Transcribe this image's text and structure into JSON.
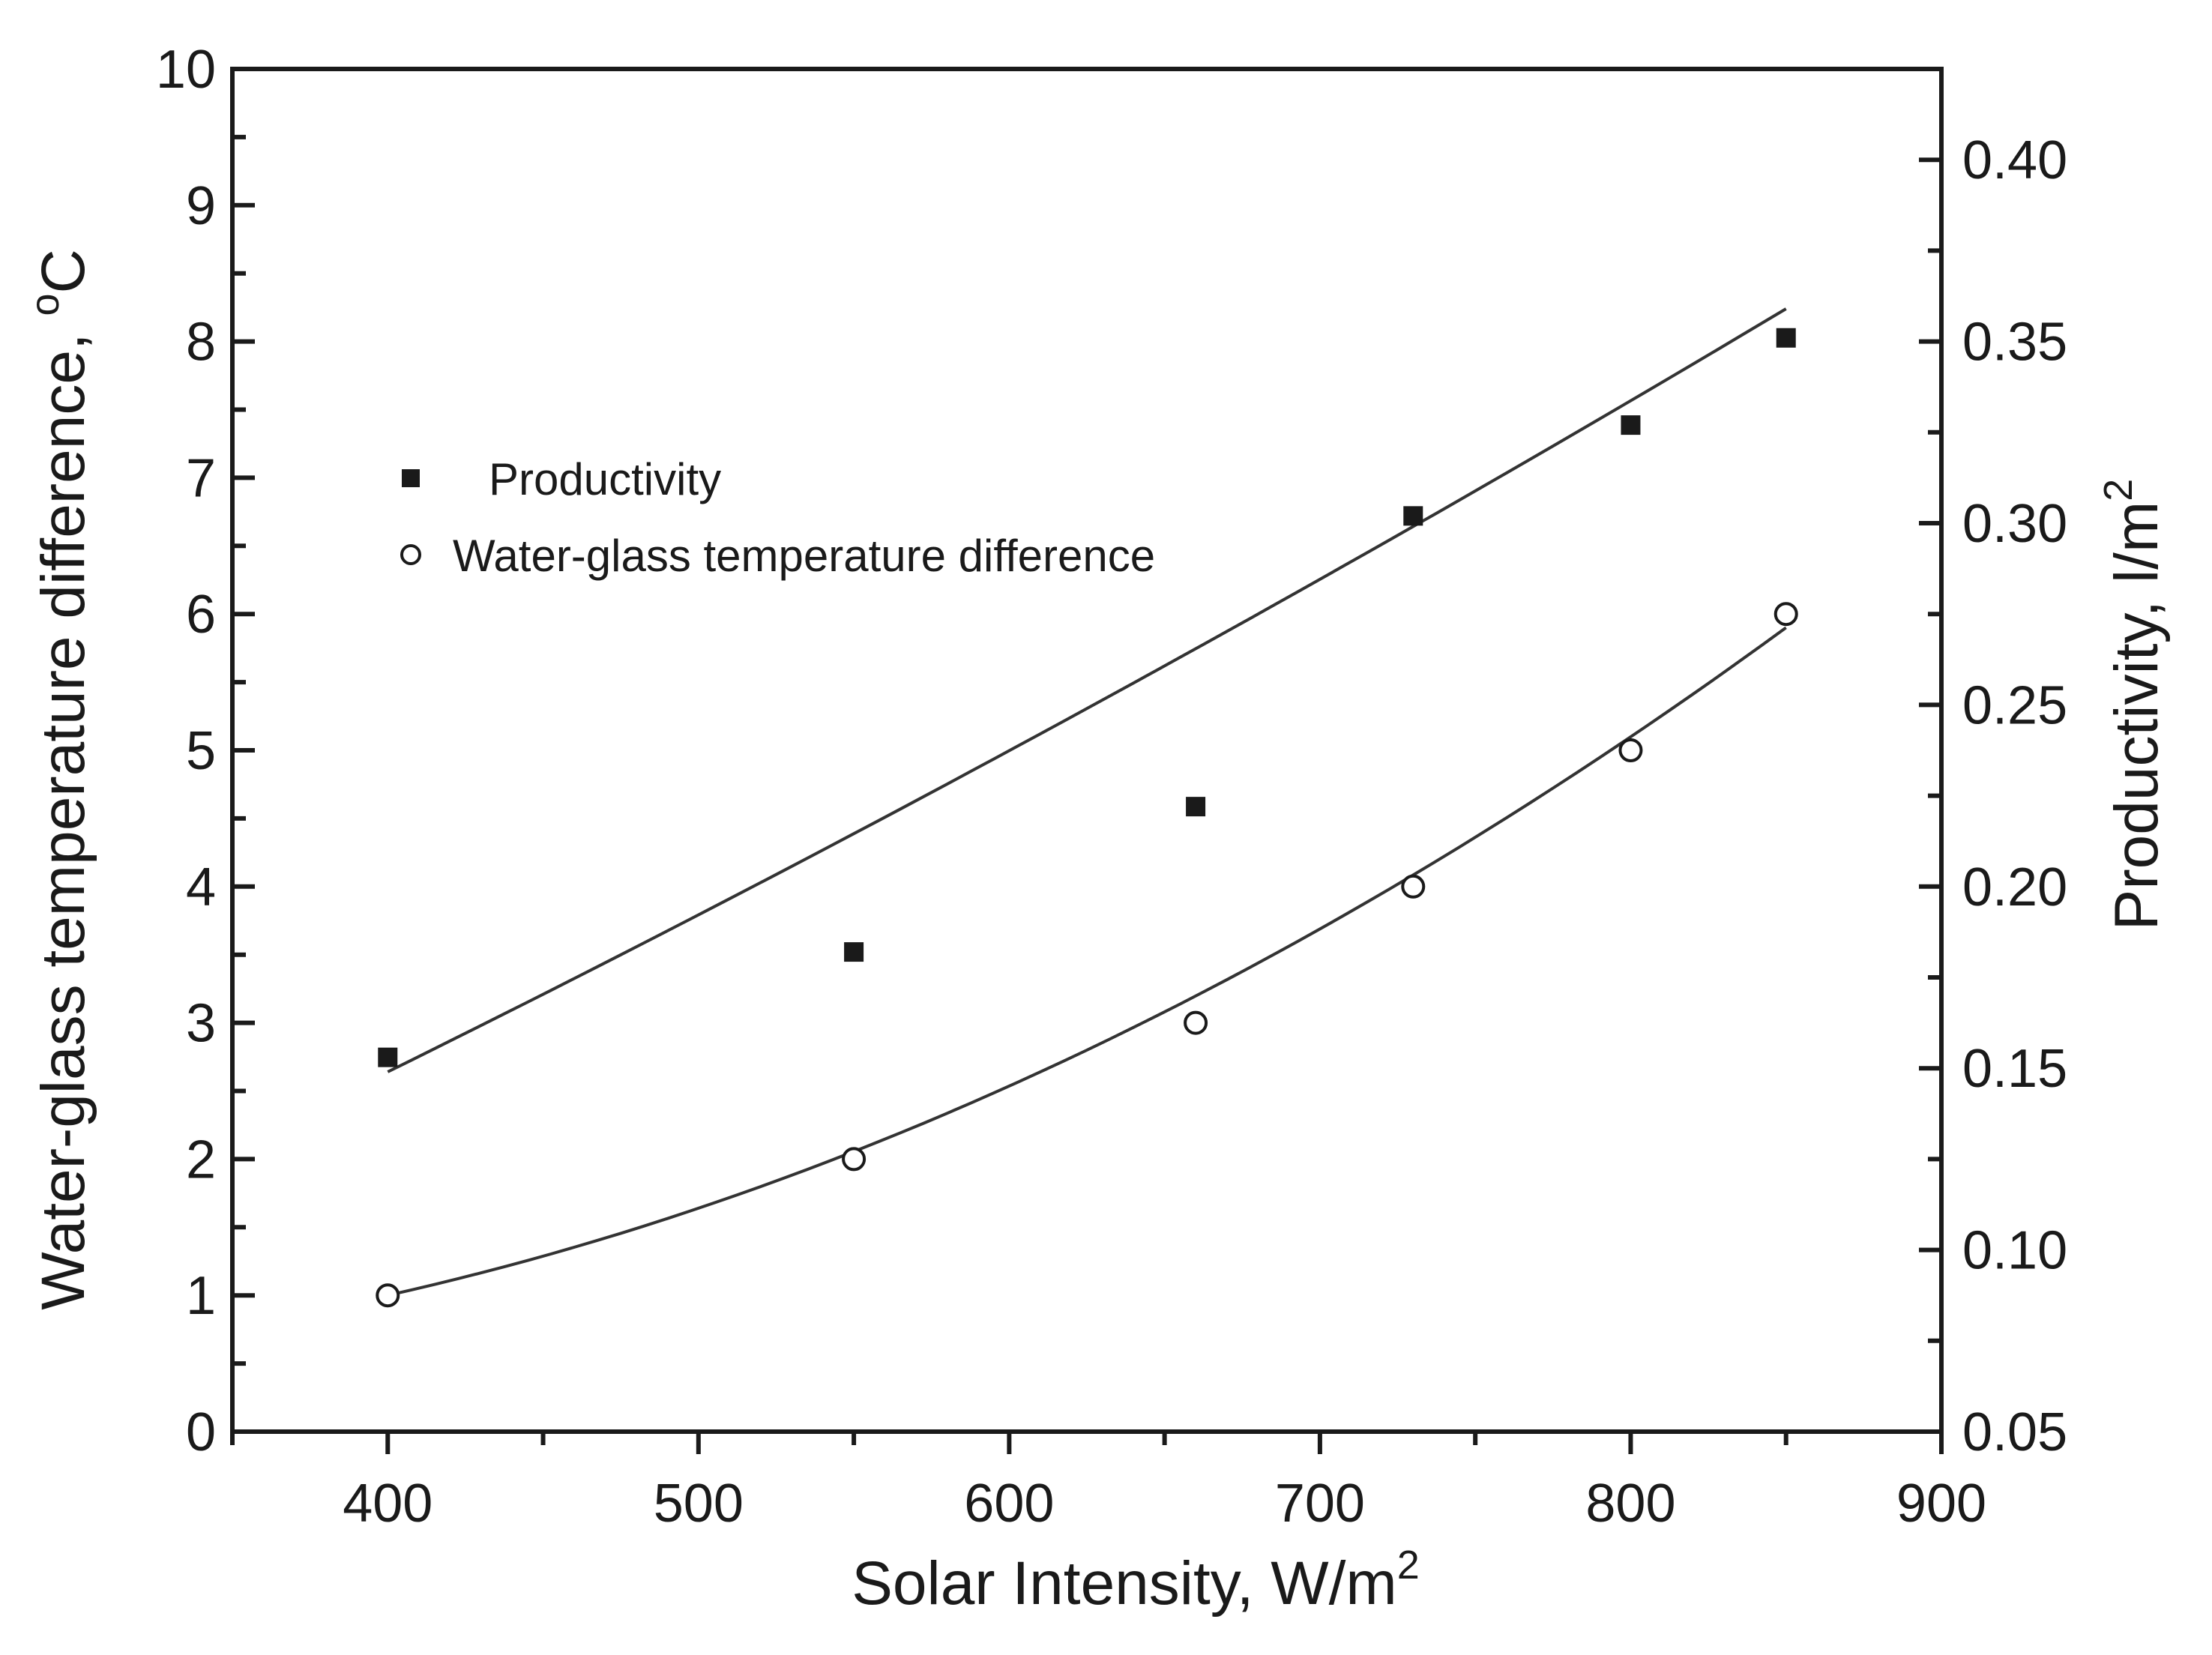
{
  "chart_data": {
    "type": "scatter",
    "title": "",
    "xlabel": {
      "text": "Solar Intensity, W/m",
      "sup": "2"
    },
    "ylabel_left": {
      "text": "Water-glass temperature difference, ",
      "sup": "o",
      "suffix": "C"
    },
    "ylabel_right": {
      "text": "Productivity, l/m",
      "sup": "2"
    },
    "xlim": [
      350,
      900
    ],
    "ylim_left": [
      0,
      10
    ],
    "ylim_right": [
      0.05,
      0.425
    ],
    "x_ticks": [
      400,
      500,
      600,
      700,
      800,
      900
    ],
    "x_tick_labels": [
      "400",
      "500",
      "600",
      "700",
      "800",
      "900"
    ],
    "y_left_ticks": [
      0,
      1,
      2,
      3,
      4,
      5,
      6,
      7,
      8,
      9,
      10
    ],
    "y_left_tick_labels": [
      "0",
      "1",
      "2",
      "3",
      "4",
      "5",
      "6",
      "7",
      "8",
      "9",
      "10"
    ],
    "y_right_ticks": [
      0.05,
      0.1,
      0.15,
      0.2,
      0.25,
      0.3,
      0.35,
      0.4
    ],
    "y_right_tick_labels": [
      "0.05",
      "0.10",
      "0.15",
      "0.20",
      "0.25",
      "0.30",
      "0.35",
      "0.40"
    ],
    "legend_position": "upper-left",
    "series": [
      {
        "name": "Productivity",
        "axis": "right",
        "marker": "filled-square",
        "x": [
          400,
          550,
          660,
          730,
          800,
          850
        ],
        "y": [
          0.153,
          0.182,
          0.222,
          0.302,
          0.327,
          0.351
        ],
        "fit": {
          "type": "quadratic",
          "y_start": 0.149,
          "y_mid": 0.249,
          "y_end": 0.359
        }
      },
      {
        "name": "Water-glass temperature difference",
        "axis": "left",
        "marker": "open-circle",
        "x": [
          400,
          550,
          660,
          730,
          800,
          850
        ],
        "y": [
          1.0,
          2.0,
          3.0,
          4.0,
          5.0,
          6.0
        ],
        "fit": {
          "type": "quadratic",
          "y_start": 1.0,
          "y_mid": 2.8,
          "y_end": 5.9
        }
      }
    ],
    "colors": {
      "axis": "#1a1a1a",
      "line": "#333333",
      "marker": "#1a1a1a"
    }
  }
}
